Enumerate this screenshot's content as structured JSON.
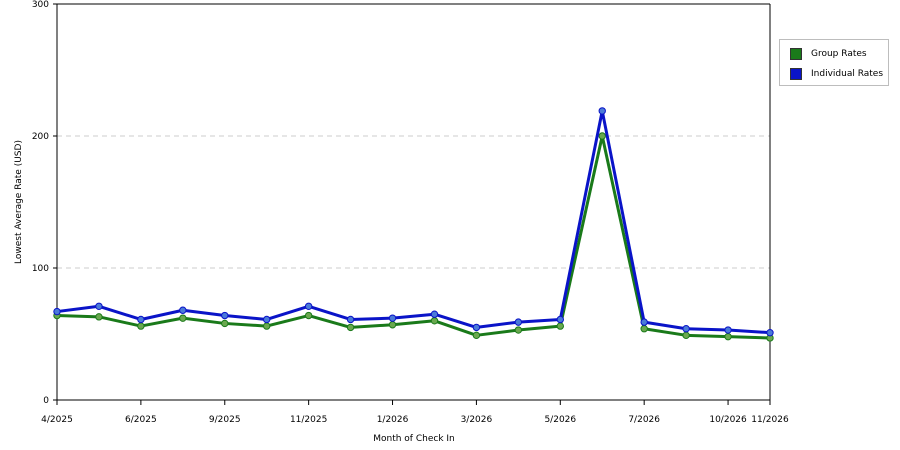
{
  "chart_data": {
    "type": "line",
    "xlabel": "Month of Check In",
    "ylabel": "Lowest Average Rate (USD)",
    "ylim": [
      0,
      300
    ],
    "yticks": [
      0,
      100,
      200,
      300
    ],
    "grid": true,
    "legend_position": "right",
    "x_points": 18,
    "x_tick_labels": [
      {
        "index": 0,
        "label": "4/2025"
      },
      {
        "index": 2,
        "label": "6/2025"
      },
      {
        "index": 4,
        "label": "9/2025"
      },
      {
        "index": 6,
        "label": "11/2025"
      },
      {
        "index": 8,
        "label": "1/2026"
      },
      {
        "index": 10,
        "label": "3/2026"
      },
      {
        "index": 12,
        "label": "5/2026"
      },
      {
        "index": 14,
        "label": "7/2026"
      },
      {
        "index": 16,
        "label": "10/2026"
      },
      {
        "index": 17,
        "label": "11/2026"
      }
    ],
    "series": [
      {
        "name": "Group Rates",
        "color": "#1a7a1a",
        "marker_color": "#6aa84f",
        "values": [
          64,
          63,
          56,
          62,
          58,
          56,
          64,
          55,
          57,
          60,
          49,
          53,
          56,
          200,
          54,
          49,
          48,
          47
        ]
      },
      {
        "name": "Individual Rates",
        "color": "#0a14c8",
        "marker_color": "#4a7ad8",
        "values": [
          67,
          71,
          61,
          68,
          64,
          61,
          71,
          61,
          62,
          65,
          55,
          59,
          61,
          219,
          59,
          54,
          53,
          51
        ]
      }
    ]
  },
  "legend": {
    "items": [
      {
        "label": "Group Rates",
        "color": "#1a7a1a"
      },
      {
        "label": "Individual Rates",
        "color": "#0a14c8"
      }
    ]
  }
}
